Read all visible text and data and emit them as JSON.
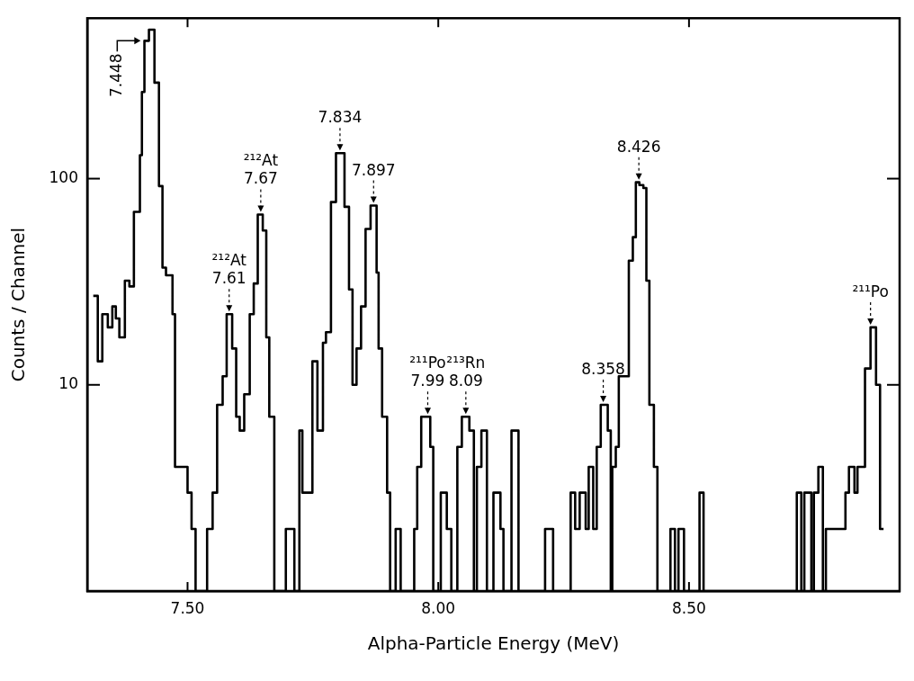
{
  "chart_data": {
    "type": "histogram",
    "xlabel": "Alpha-Particle Energy (MeV)",
    "ylabel": "Counts / Channel",
    "color": "#000000",
    "log": "y",
    "bins": [
      7.312,
      7.321,
      7.33,
      7.341,
      7.35,
      7.357,
      7.364,
      7.375,
      7.384,
      7.393,
      7.405,
      7.409,
      7.414,
      7.423,
      7.434,
      7.443,
      7.45,
      7.457,
      7.47,
      7.475,
      7.5,
      7.508,
      7.516,
      7.539,
      7.55,
      7.559,
      7.57,
      7.578,
      7.589,
      7.597,
      7.604,
      7.613,
      7.624,
      7.632,
      7.64,
      7.65,
      7.657,
      7.663,
      7.673,
      7.696,
      7.713,
      7.723,
      7.729,
      7.749,
      7.759,
      7.77,
      7.776,
      7.786,
      7.796,
      7.813,
      7.822,
      7.829,
      7.837,
      7.846,
      7.855,
      7.865,
      7.877,
      7.881,
      7.888,
      7.898,
      7.904,
      7.915,
      7.925,
      7.952,
      7.958,
      7.966,
      7.984,
      7.99,
      8.005,
      8.017,
      8.026,
      8.038,
      8.047,
      8.062,
      8.071,
      8.077,
      8.086,
      8.097,
      8.11,
      8.124,
      8.13,
      8.146,
      8.16,
      8.213,
      8.229,
      8.264,
      8.273,
      8.282,
      8.294,
      8.3,
      8.309,
      8.316,
      8.324,
      8.338,
      8.344,
      8.347,
      8.354,
      8.36,
      8.38,
      8.388,
      8.394,
      8.401,
      8.409,
      8.415,
      8.421,
      8.43,
      8.437,
      8.463,
      8.472,
      8.479,
      8.49,
      8.521,
      8.529,
      8.715,
      8.724,
      8.73,
      8.744,
      8.749,
      8.758,
      8.767,
      8.773,
      8.812,
      8.819,
      8.83,
      8.836,
      8.851,
      8.862,
      8.873,
      8.881,
      8.888
    ],
    "values": [
      27,
      13,
      22,
      19,
      24,
      21,
      17,
      32,
      30,
      69,
      130,
      263,
      466,
      528,
      292,
      92,
      37,
      34,
      22,
      4,
      3,
      2,
      1,
      2,
      3,
      8,
      11,
      22,
      15,
      7,
      6,
      9,
      22,
      31,
      67,
      56,
      17,
      7,
      1,
      2,
      1,
      6,
      3,
      13,
      6,
      16,
      18,
      77,
      133,
      73,
      29,
      10,
      15,
      24,
      57,
      74,
      35,
      15,
      7,
      3,
      1,
      2,
      1,
      2,
      4,
      7,
      5,
      1,
      3,
      2,
      1,
      5,
      7,
      6,
      1,
      4,
      6,
      1,
      3,
      2,
      1,
      6,
      1,
      2,
      1,
      3,
      2,
      3,
      2,
      4,
      2,
      5,
      8,
      6,
      1,
      4,
      5,
      11,
      40,
      52,
      96,
      93,
      90,
      32,
      8,
      4,
      1,
      2,
      1,
      2,
      1,
      3,
      1,
      3,
      1,
      3,
      1,
      3,
      4,
      1,
      2,
      3,
      4,
      3,
      4,
      12,
      19,
      10,
      2
    ],
    "xlim": [
      7.3,
      8.92
    ],
    "xticks": [
      {
        "value": 7.5,
        "label": "7.50"
      },
      {
        "value": 8.0,
        "label": "8.00"
      },
      {
        "value": 8.5,
        "label": "8.50"
      }
    ],
    "ylim": [
      1,
      600
    ],
    "yticks": [
      10,
      100
    ],
    "annotations": [
      {
        "text": "7.448",
        "x": 7.41,
        "y": 466
      },
      {
        "text": "²¹²At\n7.61",
        "x": 7.583,
        "y": 22
      },
      {
        "text": "²¹²At\n7.67",
        "x": 7.646,
        "y": 67
      },
      {
        "text": "7.834",
        "x": 7.804,
        "y": 133
      },
      {
        "text": "7.897",
        "x": 7.871,
        "y": 74
      },
      {
        "text": "²¹¹Po\n7.99",
        "x": 7.979,
        "y": 7
      },
      {
        "text": "²¹³Rn\n8.09",
        "x": 8.055,
        "y": 7
      },
      {
        "text": "8.358",
        "x": 8.329,
        "y": 8
      },
      {
        "text": "8.426",
        "x": 8.4,
        "y": 96
      },
      {
        "text": "²¹¹Po",
        "x": 8.862,
        "y": 19
      }
    ]
  }
}
